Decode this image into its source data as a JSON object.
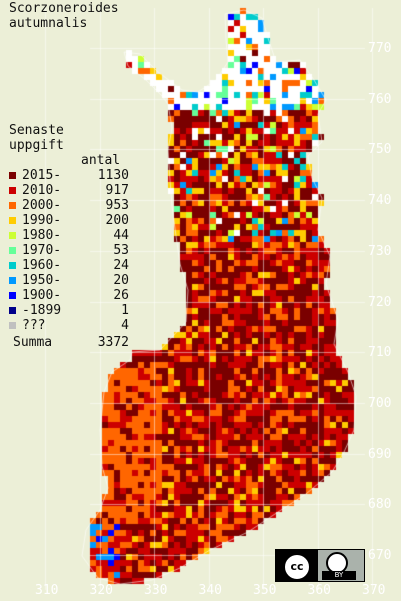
{
  "title": [
    "Scorzoneroides",
    "autumnalis"
  ],
  "legend": {
    "heading": [
      "Senaste",
      "uppgift"
    ],
    "count_header": "antal",
    "items": [
      {
        "label": "2015-",
        "count": "1130",
        "color": "#7a0000"
      },
      {
        "label": "2010-",
        "count": "917",
        "color": "#cc0000"
      },
      {
        "label": "2000-",
        "count": "953",
        "color": "#ff6600"
      },
      {
        "label": "1990-",
        "count": "200",
        "color": "#ffcc00"
      },
      {
        "label": "1980-",
        "count": "44",
        "color": "#ccff33"
      },
      {
        "label": "1970-",
        "count": "53",
        "color": "#66ff99"
      },
      {
        "label": "1960-",
        "count": "24",
        "color": "#00cccc"
      },
      {
        "label": "1950-",
        "count": "20",
        "color": "#0099ff"
      },
      {
        "label": "1900-",
        "count": "26",
        "color": "#0000ff"
      },
      {
        "label": "-1899",
        "count": "1",
        "color": "#00008b"
      },
      {
        "label": "???",
        "count": "4",
        "color": "#c0c0c0"
      }
    ],
    "total_label": "Summa",
    "total": "3372"
  },
  "y_axis": [
    "770",
    "760",
    "750",
    "740",
    "730",
    "720",
    "710",
    "700",
    "690",
    "680",
    "670"
  ],
  "x_axis": [
    "310",
    "320",
    "330",
    "340",
    "350",
    "360",
    "370"
  ],
  "license": {
    "cc": "cc",
    "by": "BY"
  },
  "colors": {
    "background": "#ecefd7",
    "north_white": "#ffffff",
    "grid": "#ffffff"
  }
}
